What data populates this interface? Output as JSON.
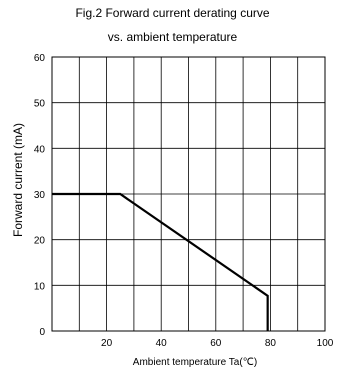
{
  "chart_data": {
    "type": "line",
    "title_lines": [
      "Fig.2  Forward current derating curve",
      "vs. ambient temperature"
    ],
    "xlabel": "Ambient temperature Ta(℃)",
    "ylabel": "Forward current (mA)",
    "xlim": [
      0,
      100
    ],
    "ylim": [
      0,
      60
    ],
    "xticks": [
      20,
      40,
      60,
      80,
      100
    ],
    "yticks": [
      0,
      10,
      20,
      30,
      40,
      50,
      60
    ],
    "x_grid_step": 10,
    "grid": true,
    "series": [
      {
        "x": [
          0,
          25,
          79,
          79
        ],
        "y": [
          30,
          30,
          7.7,
          0
        ]
      }
    ]
  }
}
